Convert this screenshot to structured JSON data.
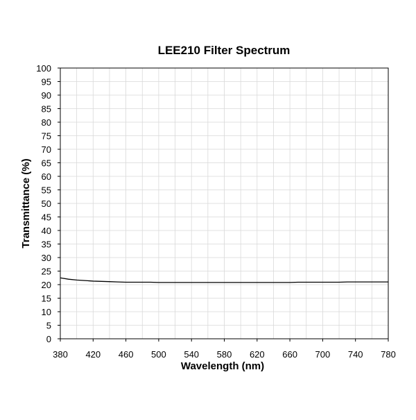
{
  "chart_data": {
    "type": "line",
    "title": "LEE210 Filter Spectrum",
    "xlabel": "Wavelength (nm)",
    "ylabel": "Transmittance (%)",
    "xlim": [
      380,
      780
    ],
    "ylim": [
      0,
      100
    ],
    "x_ticks": [
      380,
      420,
      460,
      500,
      540,
      580,
      620,
      660,
      700,
      740,
      780
    ],
    "y_ticks": [
      0,
      5,
      10,
      15,
      20,
      25,
      30,
      35,
      40,
      45,
      50,
      55,
      60,
      65,
      70,
      75,
      80,
      85,
      90,
      95,
      100
    ],
    "grid": true,
    "legend": "none",
    "series": [
      {
        "color": "#000000",
        "x": [
          380,
          390,
          400,
          410,
          420,
          430,
          440,
          450,
          460,
          470,
          480,
          490,
          500,
          510,
          520,
          530,
          540,
          550,
          560,
          570,
          580,
          590,
          600,
          610,
          620,
          630,
          640,
          650,
          660,
          670,
          680,
          690,
          700,
          710,
          720,
          730,
          740,
          750,
          760,
          770,
          780
        ],
        "y": [
          22.5,
          22.0,
          21.7,
          21.5,
          21.3,
          21.2,
          21.1,
          21.0,
          20.9,
          20.9,
          20.9,
          20.9,
          20.8,
          20.8,
          20.8,
          20.8,
          20.8,
          20.8,
          20.8,
          20.8,
          20.8,
          20.8,
          20.8,
          20.8,
          20.8,
          20.8,
          20.8,
          20.8,
          20.8,
          20.9,
          20.9,
          20.9,
          20.9,
          20.9,
          20.9,
          21.0,
          21.0,
          21.0,
          21.0,
          21.0,
          21.0
        ]
      }
    ]
  }
}
